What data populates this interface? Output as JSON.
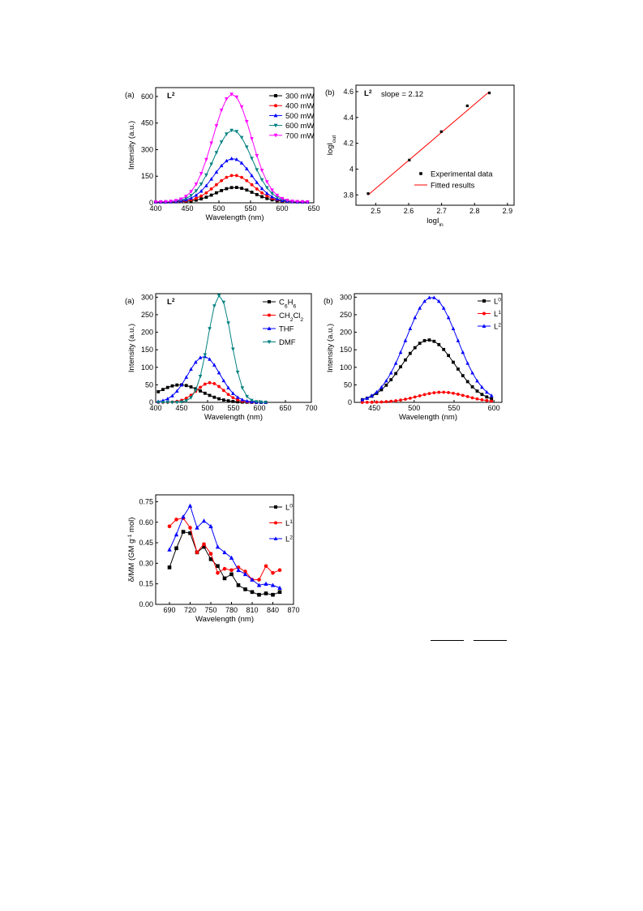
{
  "charts": [
    {
      "type": "line",
      "panel_label": "(a)",
      "sample": {
        "base": "L",
        "sup": "2"
      },
      "xlabel": "Wavelength (nm)",
      "ylabel": "Intensity (a.u.)",
      "xlim": [
        400,
        650
      ],
      "ylim": [
        0,
        650
      ],
      "xticks": [
        400,
        450,
        500,
        550,
        600,
        650
      ],
      "yticks": [
        0,
        150,
        300,
        450,
        600
      ],
      "legend_pos": "top-right",
      "gen": {
        "kind": "gauss",
        "x0": 400,
        "x1": 640,
        "step": 8,
        "series": [
          {
            "name": "300 mW",
            "color": "#000000",
            "marker": "square",
            "amp": 82,
            "mu": 525,
            "sigma": 30,
            "base": 5
          },
          {
            "name": "400 mW",
            "color": "#ff0000",
            "marker": "circle",
            "amp": 150,
            "mu": 524,
            "sigma": 30,
            "base": 5
          },
          {
            "name": "500 mW",
            "color": "#0000ff",
            "marker": "triangle",
            "amp": 245,
            "mu": 522,
            "sigma": 30,
            "base": 5
          },
          {
            "name": "600 mW",
            "color": "#008080",
            "marker": "tridown",
            "amp": 405,
            "mu": 522,
            "sigma": 30,
            "base": 5
          },
          {
            "name": "700 mW",
            "color": "#ff00ff",
            "marker": "tridown",
            "amp": 608,
            "mu": 521,
            "sigma": 30,
            "base": 5
          }
        ]
      }
    },
    {
      "type": "scatter",
      "panel_label": "(b)",
      "sample": {
        "base": "L",
        "sup": "2"
      },
      "annotation": "slope = 2.12",
      "xlabel": {
        "base": "logI",
        "sub": "in"
      },
      "ylabel": {
        "base": "logI",
        "sub": "out"
      },
      "xlim": [
        2.44,
        2.92
      ],
      "ylim": [
        3.72,
        4.65
      ],
      "xticks": [
        2.5,
        2.6,
        2.7,
        2.8,
        2.9
      ],
      "yticks": [
        3.8,
        4.0,
        4.2,
        4.4,
        4.6
      ],
      "legend_pos": "bottom-right",
      "points": {
        "name": "Experimental data",
        "color": "#000000",
        "x": [
          2.477,
          2.602,
          2.699,
          2.778,
          2.845
        ],
        "y": [
          3.81,
          4.07,
          4.29,
          4.49,
          4.59
        ]
      },
      "fit": {
        "name": "Fitted results",
        "color": "#ff0000",
        "x": [
          2.477,
          2.845
        ],
        "y": [
          3.8,
          4.6
        ]
      }
    },
    {
      "type": "line",
      "panel_label": "(a)",
      "sample": {
        "base": "L",
        "sup": "2"
      },
      "xlabel": "Wavelength (nm)",
      "ylabel": "Intensity (a.u.)",
      "xlim": [
        400,
        700
      ],
      "ylim": [
        0,
        310
      ],
      "xticks": [
        400,
        450,
        500,
        550,
        600,
        650,
        700
      ],
      "yticks": [
        0,
        50,
        100,
        150,
        200,
        250,
        300
      ],
      "legend_pos": "top-right",
      "gen": {
        "kind": "gauss",
        "x0": 405,
        "x1": 615,
        "step": 9,
        "series": [
          {
            "name": "C6H6",
            "label": [
              [
                "C",
                "n"
              ],
              [
                "6",
                "s"
              ],
              [
                "H",
                "n"
              ],
              [
                "6",
                "s"
              ]
            ],
            "color": "#000000",
            "marker": "square",
            "amp": 50,
            "mu": 447,
            "sigma": 42,
            "base": 0
          },
          {
            "name": "CH2Cl2",
            "label": [
              [
                "CH",
                "n"
              ],
              [
                "2",
                "s"
              ],
              [
                "Cl",
                "n"
              ],
              [
                "2",
                "s"
              ]
            ],
            "color": "#ff0000",
            "marker": "circle",
            "amp": 56,
            "mu": 505,
            "sigma": 26,
            "base": 0
          },
          {
            "name": "THF",
            "color": "#0000ff",
            "marker": "triangle",
            "amp": 131,
            "mu": 493,
            "sigma": 31,
            "base": 0
          },
          {
            "name": "DMF",
            "color": "#008080",
            "marker": "tridown",
            "amp": 305,
            "mu": 523,
            "sigma": 22,
            "base": 0
          }
        ]
      }
    },
    {
      "type": "line",
      "panel_label": "(b)",
      "xlabel": "Wavelength (nm)",
      "ylabel": "Intensity (a.u.)",
      "xlim": [
        425,
        610
      ],
      "ylim": [
        0,
        310
      ],
      "xticks": [
        450,
        500,
        550,
        600
      ],
      "yticks": [
        0,
        50,
        100,
        150,
        200,
        250,
        300
      ],
      "legend_pos": "top-right",
      "gen": {
        "kind": "gauss",
        "x0": 435,
        "x1": 600,
        "step": 6,
        "series": [
          {
            "name": "L0",
            "label": [
              [
                "L",
                "n"
              ],
              [
                "0",
                "p"
              ]
            ],
            "color": "#000000",
            "marker": "square",
            "amp": 178,
            "mu": 518,
            "sigma": 33,
            "base": 0
          },
          {
            "name": "L1",
            "label": [
              [
                "L",
                "n"
              ],
              [
                "1",
                "p"
              ]
            ],
            "color": "#ff0000",
            "marker": "circle",
            "amp": 29,
            "mu": 535,
            "sigma": 30,
            "base": 0
          },
          {
            "name": "L2",
            "label": [
              [
                "L",
                "n"
              ],
              [
                "2",
                "p"
              ]
            ],
            "color": "#0000ff",
            "marker": "triangle",
            "amp": 300,
            "mu": 522,
            "sigma": 32,
            "base": 0
          }
        ]
      }
    },
    {
      "type": "line",
      "xlabel": "Wavelength (nm)",
      "ylabel": [
        [
          "δ/MM (GM g",
          "n"
        ],
        [
          "-1",
          "p"
        ],
        [
          " mol)",
          "n"
        ]
      ],
      "xlim": [
        670,
        870
      ],
      "ylim": [
        0,
        0.8
      ],
      "xticks": [
        690,
        720,
        750,
        780,
        810,
        840,
        870
      ],
      "yticks": [
        0.0,
        0.15,
        0.3,
        0.45,
        0.6,
        0.75
      ],
      "yfmt": 2,
      "legend_pos": "top-right",
      "x": [
        690,
        700,
        710,
        720,
        730,
        740,
        750,
        760,
        770,
        780,
        790,
        800,
        810,
        820,
        830,
        840,
        850
      ],
      "series": [
        {
          "name": "L0",
          "label": [
            [
              "L",
              "n"
            ],
            [
              "0",
              "p"
            ]
          ],
          "color": "#000000",
          "marker": "square",
          "values": [
            0.27,
            0.41,
            0.53,
            0.52,
            0.38,
            0.42,
            0.33,
            0.28,
            0.19,
            0.22,
            0.14,
            0.11,
            0.09,
            0.07,
            0.08,
            0.07,
            0.09
          ]
        },
        {
          "name": "L1",
          "label": [
            [
              "L",
              "n"
            ],
            [
              "1",
              "p"
            ]
          ],
          "color": "#ff0000",
          "marker": "circle",
          "values": [
            0.57,
            0.62,
            0.63,
            0.56,
            0.38,
            0.44,
            0.37,
            0.23,
            0.26,
            0.25,
            0.27,
            0.24,
            0.18,
            0.18,
            0.28,
            0.23,
            0.25
          ]
        },
        {
          "name": "L2",
          "label": [
            [
              "L",
              "n"
            ],
            [
              "2",
              "p"
            ]
          ],
          "color": "#0000ff",
          "marker": "triangle",
          "values": [
            0.4,
            0.51,
            0.64,
            0.72,
            0.56,
            0.61,
            0.57,
            0.42,
            0.38,
            0.34,
            0.25,
            0.22,
            0.18,
            0.14,
            0.15,
            0.14,
            0.12
          ]
        }
      ]
    }
  ]
}
